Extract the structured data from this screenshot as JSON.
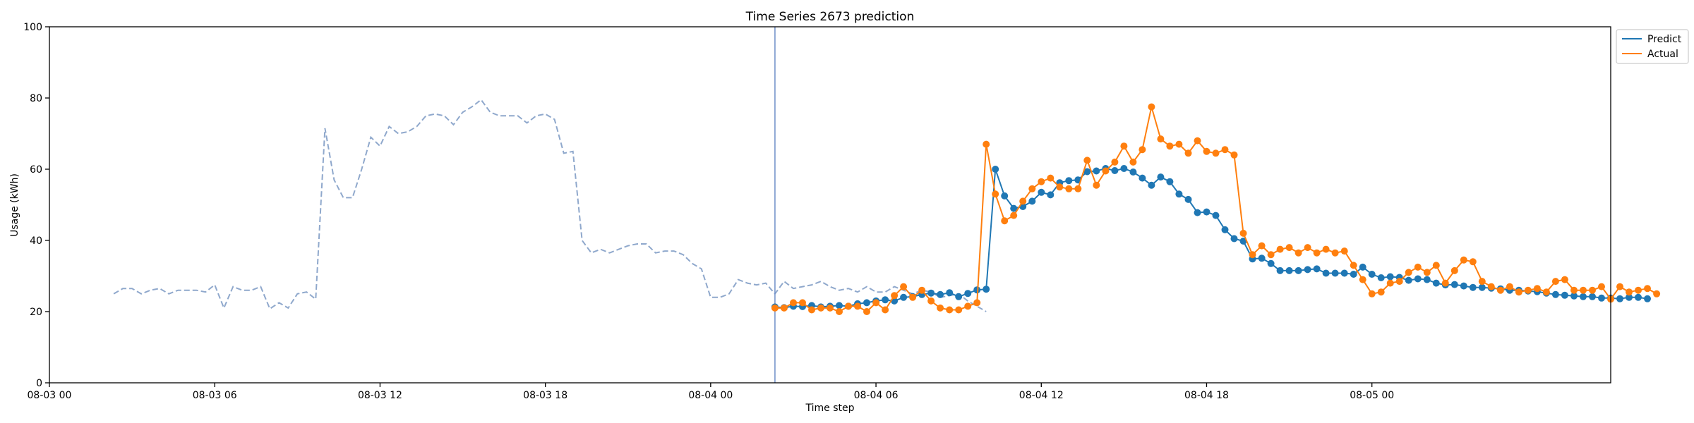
{
  "chart_data": {
    "type": "line",
    "title": "Time Series 2673 prediction",
    "xlabel": "Time step",
    "ylabel": "Usage (kWh)",
    "ylim": [
      0,
      100
    ],
    "yticks": [
      0,
      20,
      40,
      60,
      80,
      100
    ],
    "xlim": [
      "2024-08-03 00:00",
      "2024-08-05 08:40"
    ],
    "xticks": [
      "08-03 00",
      "08-03 06",
      "08-03 12",
      "08-03 18",
      "08-04 00",
      "08-04 06",
      "08-04 12",
      "08-04 18",
      "08-05 00"
    ],
    "grid": false,
    "legend_position": "outside top-right",
    "forecast_start": "2024-08-04 02:20",
    "colors": {
      "history": "#8fa8cc",
      "predict": "#1f77b4",
      "actual": "#ff7f0e",
      "divider": "#6f8fc9"
    },
    "history": {
      "start": "2024-08-03 02:20",
      "step_minutes": 20,
      "style": "dashed",
      "values": [
        25,
        26.5,
        26.5,
        25,
        26,
        26.5,
        25,
        26,
        26,
        26,
        25.5,
        27.5,
        21,
        27,
        26,
        26,
        27,
        20.8,
        22.5,
        21,
        25,
        25.5,
        23.5,
        71.5,
        57,
        52,
        52,
        60,
        69,
        66.5,
        72,
        70,
        70.5,
        72,
        75,
        75.5,
        75,
        72.5,
        76,
        77.5,
        79.5,
        76,
        75,
        75,
        75,
        73,
        75,
        75.5,
        74,
        64.5,
        65,
        40,
        36.5,
        37.5,
        36.5,
        37.5,
        38.5,
        39,
        39,
        36.5,
        37,
        37,
        36,
        33.5,
        32,
        24,
        24,
        25,
        29,
        28,
        27.5,
        28,
        25,
        28.5,
        26.5,
        27,
        27.5,
        28.5,
        27,
        26,
        26.5,
        25.5,
        27,
        25.5,
        25.5,
        27,
        26,
        25,
        26,
        25.5,
        24,
        24.5,
        25,
        23,
        21.5,
        20
      ]
    },
    "series": [
      {
        "name": "Predict",
        "start": "2024-08-04 02:20",
        "step_minutes": 20,
        "values": [
          21.3,
          21.1,
          21.5,
          21.4,
          21.7,
          21.3,
          21.5,
          21.7,
          21.5,
          22.2,
          22.5,
          23.0,
          23.3,
          23.0,
          24.0,
          24.2,
          24.8,
          25.2,
          24.8,
          25.3,
          24.2,
          25.1,
          26.1,
          26.3,
          60.0,
          52.5,
          49.0,
          49.5,
          51.0,
          53.5,
          52.8,
          56.2,
          56.8,
          57.0,
          59.3,
          59.5,
          60.2,
          59.6,
          60.2,
          59.2,
          57.5,
          55.5,
          57.8,
          56.5,
          53.0,
          51.5,
          47.8,
          48.0,
          47.0,
          43.0,
          40.5,
          39.8,
          34.8,
          35.0,
          33.5,
          31.5,
          31.5,
          31.5,
          31.8,
          32.0,
          30.8,
          30.8,
          30.8,
          30.5,
          32.5,
          30.5,
          29.5,
          29.8,
          29.6,
          28.8,
          29.2,
          29.0,
          28.0,
          27.5,
          27.6,
          27.2,
          26.8,
          26.8,
          26.6,
          26.4,
          26.0,
          26.0,
          25.8,
          25.6,
          25.2,
          24.8,
          24.6,
          24.4,
          24.2,
          24.2,
          23.8,
          23.8,
          23.6,
          24.0,
          24.0,
          23.6
        ]
      },
      {
        "name": "Actual",
        "start": "2024-08-04 02:20",
        "step_minutes": 20,
        "values": [
          21.0,
          21.0,
          22.5,
          22.5,
          20.5,
          21.0,
          21.0,
          20.0,
          21.5,
          21.5,
          20.0,
          22.5,
          20.5,
          24.5,
          27.0,
          24.0,
          26.0,
          23.0,
          21.0,
          20.5,
          20.5,
          21.5,
          22.5,
          67.0,
          53.0,
          45.5,
          47.0,
          51.0,
          54.5,
          56.5,
          57.5,
          55.0,
          54.5,
          54.5,
          62.5,
          55.5,
          59.5,
          62.0,
          66.5,
          62.0,
          65.5,
          77.5,
          68.5,
          66.5,
          67.0,
          64.5,
          68.0,
          65.0,
          64.5,
          65.5,
          64.0,
          42.0,
          36.0,
          38.5,
          36.0,
          37.5,
          38.0,
          36.5,
          38.0,
          36.5,
          37.5,
          36.5,
          37.0,
          33.0,
          29.0,
          25.0,
          25.5,
          28.0,
          28.5,
          31.0,
          32.5,
          31.0,
          33.0,
          28.0,
          31.5,
          34.5,
          34.0,
          28.5,
          27.0,
          26.0,
          27.0,
          25.5,
          26.0,
          26.5,
          25.5,
          28.5,
          29.0,
          26.0,
          26.0,
          26.0,
          27.0,
          23.5,
          27.0,
          25.5,
          26.0,
          26.5,
          25.0
        ]
      }
    ]
  }
}
